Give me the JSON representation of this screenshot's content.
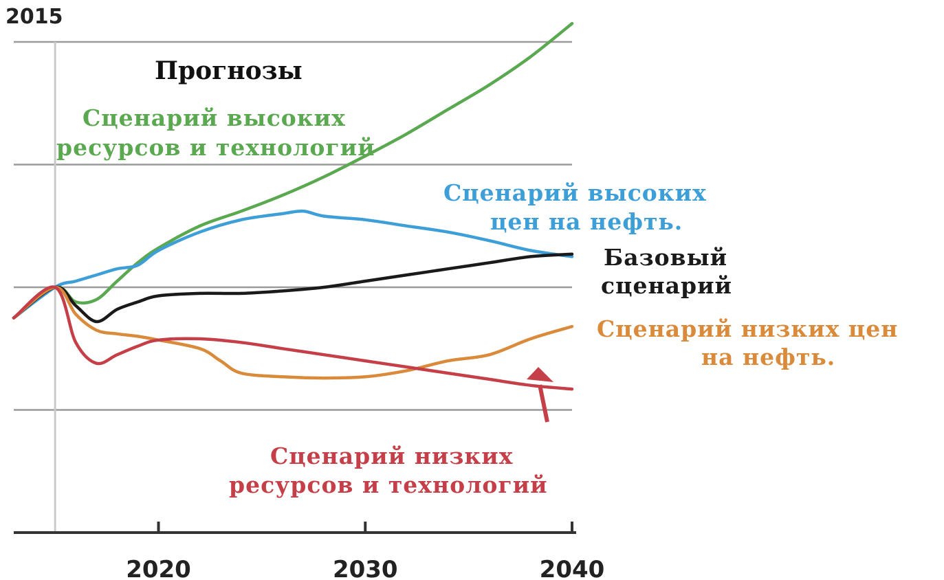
{
  "chart_data": {
    "type": "line",
    "corner_label": "2015",
    "title": "Прогнозы",
    "x_ticks": [
      2020,
      2030,
      2040
    ],
    "xlim": [
      2013,
      2040
    ],
    "ylim": [
      0,
      4
    ],
    "y_gridlines": [
      1,
      2,
      3,
      4
    ],
    "grid": true,
    "legend": "none",
    "series": [
      {
        "key": "green",
        "color": "#5aa850",
        "label": [
          "Сценарий высоких",
          "ресурсов и технологий"
        ],
        "x": [
          2013,
          2015,
          2016,
          2017,
          2018,
          2019,
          2020,
          2022,
          2024,
          2026,
          2028,
          2030,
          2032,
          2034,
          2036,
          2038,
          2040
        ],
        "y": [
          1.75,
          2.0,
          1.88,
          1.9,
          2.05,
          2.2,
          2.32,
          2.5,
          2.62,
          2.75,
          2.9,
          3.07,
          3.25,
          3.45,
          3.65,
          3.88,
          4.15
        ]
      },
      {
        "key": "blue",
        "color": "#3e9fd8",
        "label": [
          "Сценарий высоких",
          "цен на нефть."
        ],
        "x": [
          2013,
          2015,
          2016,
          2017,
          2018,
          2019,
          2020,
          2022,
          2024,
          2026,
          2027,
          2028,
          2030,
          2032,
          2034,
          2036,
          2038,
          2040
        ],
        "y": [
          1.75,
          2.0,
          2.05,
          2.1,
          2.15,
          2.18,
          2.3,
          2.45,
          2.55,
          2.6,
          2.62,
          2.58,
          2.55,
          2.5,
          2.45,
          2.38,
          2.3,
          2.25
        ]
      },
      {
        "key": "black",
        "color": "#1a1a1a",
        "label": [
          "Базовый",
          "сценарий"
        ],
        "x": [
          2013,
          2015,
          2016,
          2017,
          2018,
          2019,
          2020,
          2022,
          2024,
          2026,
          2028,
          2030,
          2032,
          2034,
          2036,
          2038,
          2040
        ],
        "y": [
          1.75,
          2.0,
          1.85,
          1.72,
          1.82,
          1.88,
          1.93,
          1.95,
          1.95,
          1.97,
          2.0,
          2.05,
          2.1,
          2.15,
          2.2,
          2.25,
          2.27
        ]
      },
      {
        "key": "orange",
        "color": "#d98a3a",
        "label": [
          "Сценарий низких цен",
          "на нефть."
        ],
        "x": [
          2013,
          2015,
          2016,
          2017,
          2018,
          2019,
          2020,
          2022,
          2023,
          2024,
          2026,
          2028,
          2030,
          2032,
          2034,
          2036,
          2038,
          2040
        ],
        "y": [
          1.75,
          2.0,
          1.78,
          1.65,
          1.62,
          1.6,
          1.57,
          1.5,
          1.4,
          1.3,
          1.27,
          1.26,
          1.27,
          1.32,
          1.4,
          1.45,
          1.58,
          1.68
        ]
      },
      {
        "key": "red",
        "color": "#c53f48",
        "label": [
          "Сценарий низких",
          "ресурсов и технологий"
        ],
        "x": [
          2013,
          2015,
          2016,
          2017,
          2018,
          2019,
          2020,
          2022,
          2024,
          2026,
          2028,
          2030,
          2032,
          2034,
          2036,
          2038,
          2040
        ],
        "y": [
          1.75,
          2.0,
          1.55,
          1.38,
          1.45,
          1.52,
          1.57,
          1.58,
          1.55,
          1.5,
          1.45,
          1.4,
          1.35,
          1.3,
          1.25,
          1.2,
          1.17
        ]
      }
    ]
  }
}
